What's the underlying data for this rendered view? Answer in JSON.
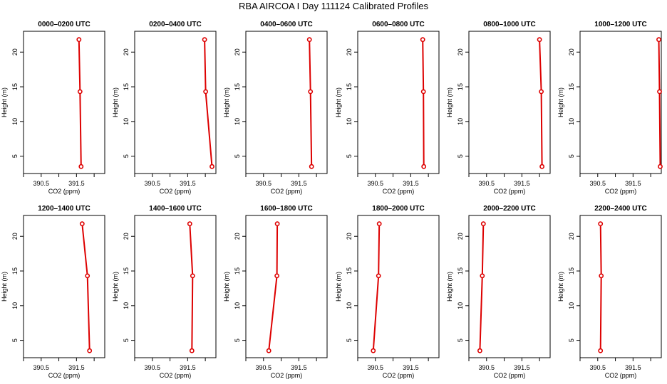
{
  "figure": {
    "title": "RBA AIRCOA I  Day 111124  Calibrated Profiles",
    "colors": {
      "series": "#dd0000",
      "axes": "#000000",
      "background": "#ffffff"
    }
  },
  "chart_data": [
    {
      "type": "line",
      "title": "0000–0200 UTC",
      "xlabel": "CO2 (ppm)",
      "ylabel": "Height (m)",
      "x_ticks": [
        "390.5",
        "391.5"
      ],
      "y_ticks": [
        "5",
        "10",
        "15",
        "20"
      ],
      "xlim": [
        390.0,
        392.3
      ],
      "ylim": [
        2.5,
        23.0
      ],
      "x": [
        391.63,
        391.6,
        391.57
      ],
      "y": [
        3.5,
        14.3,
        21.8
      ]
    },
    {
      "type": "line",
      "title": "0200–0400 UTC",
      "xlabel": "CO2 (ppm)",
      "ylabel": "Height (m)",
      "x_ticks": [
        "390.5",
        "391.5"
      ],
      "y_ticks": [
        "5",
        "10",
        "15",
        "20"
      ],
      "xlim": [
        390.0,
        392.3
      ],
      "ylim": [
        2.5,
        23.0
      ],
      "x": [
        392.19,
        392.01,
        391.98
      ],
      "y": [
        3.5,
        14.3,
        21.8
      ]
    },
    {
      "type": "line",
      "title": "0400–0600 UTC",
      "xlabel": "CO2 (ppm)",
      "ylabel": "Height (m)",
      "x_ticks": [
        "390.5",
        "391.5"
      ],
      "y_ticks": [
        "5",
        "10",
        "15",
        "20"
      ],
      "xlim": [
        390.0,
        392.3
      ],
      "ylim": [
        2.5,
        23.0
      ],
      "x": [
        391.86,
        391.83,
        391.8
      ],
      "y": [
        3.5,
        14.3,
        21.8
      ]
    },
    {
      "type": "line",
      "title": "0600–0800 UTC",
      "xlabel": "CO2 (ppm)",
      "ylabel": "Height (m)",
      "x_ticks": [
        "390.5",
        "391.5"
      ],
      "y_ticks": [
        "5",
        "10",
        "15",
        "20"
      ],
      "xlim": [
        390.0,
        392.3
      ],
      "ylim": [
        2.5,
        23.0
      ],
      "x": [
        391.87,
        391.86,
        391.84
      ],
      "y": [
        3.5,
        14.3,
        21.8
      ]
    },
    {
      "type": "line",
      "title": "0800–1000 UTC",
      "xlabel": "CO2 (ppm)",
      "ylabel": "Height (m)",
      "x_ticks": [
        "390.5",
        "391.5"
      ],
      "y_ticks": [
        "5",
        "10",
        "15",
        "20"
      ],
      "xlim": [
        390.0,
        392.3
      ],
      "ylim": [
        2.5,
        23.0
      ],
      "x": [
        392.07,
        392.05,
        392.0
      ],
      "y": [
        3.5,
        14.3,
        21.8
      ]
    },
    {
      "type": "line",
      "title": "1000–1200 UTC",
      "xlabel": "CO2 (ppm)",
      "ylabel": "Height (m)",
      "x_ticks": [
        "390.5",
        "391.5"
      ],
      "y_ticks": [
        "5",
        "10",
        "15",
        "20"
      ],
      "xlim": [
        390.0,
        392.3
      ],
      "ylim": [
        2.5,
        23.0
      ],
      "x": [
        392.27,
        392.25,
        392.23
      ],
      "y": [
        3.5,
        14.3,
        21.8
      ]
    },
    {
      "type": "line",
      "title": "1200–1400 UTC",
      "xlabel": "CO2 (ppm)",
      "ylabel": "Height (m)",
      "x_ticks": [
        "390.5",
        "391.5"
      ],
      "y_ticks": [
        "5",
        "10",
        "15",
        "20"
      ],
      "xlim": [
        390.0,
        392.3
      ],
      "ylim": [
        2.5,
        23.0
      ],
      "x": [
        391.87,
        391.81,
        391.66
      ],
      "y": [
        3.5,
        14.3,
        21.8
      ]
    },
    {
      "type": "line",
      "title": "1400–1600 UTC",
      "xlabel": "CO2 (ppm)",
      "ylabel": "Height (m)",
      "x_ticks": [
        "390.5",
        "391.5"
      ],
      "y_ticks": [
        "5",
        "10",
        "15",
        "20"
      ],
      "xlim": [
        390.0,
        392.3
      ],
      "ylim": [
        2.5,
        23.0
      ],
      "x": [
        391.62,
        391.64,
        391.56
      ],
      "y": [
        3.5,
        14.3,
        21.8
      ]
    },
    {
      "type": "line",
      "title": "1600–1800 UTC",
      "xlabel": "CO2 (ppm)",
      "ylabel": "Height (m)",
      "x_ticks": [
        "390.5",
        "391.5"
      ],
      "y_ticks": [
        "5",
        "10",
        "15",
        "20"
      ],
      "xlim": [
        390.0,
        392.3
      ],
      "ylim": [
        2.5,
        23.0
      ],
      "x": [
        390.65,
        390.88,
        390.89
      ],
      "y": [
        3.5,
        14.3,
        21.8
      ]
    },
    {
      "type": "line",
      "title": "1800–2000 UTC",
      "xlabel": "CO2 (ppm)",
      "ylabel": "Height (m)",
      "x_ticks": [
        "390.5",
        "391.5"
      ],
      "y_ticks": [
        "5",
        "10",
        "15",
        "20"
      ],
      "xlim": [
        390.0,
        392.3
      ],
      "ylim": [
        2.5,
        23.0
      ],
      "x": [
        390.44,
        390.59,
        390.61
      ],
      "y": [
        3.5,
        14.3,
        21.8
      ]
    },
    {
      "type": "line",
      "title": "2000–2200 UTC",
      "xlabel": "CO2 (ppm)",
      "ylabel": "Height (m)",
      "x_ticks": [
        "390.5",
        "391.5"
      ],
      "y_ticks": [
        "5",
        "10",
        "15",
        "20"
      ],
      "xlim": [
        390.0,
        392.3
      ],
      "ylim": [
        2.5,
        23.0
      ],
      "x": [
        390.31,
        390.38,
        390.41
      ],
      "y": [
        3.5,
        14.3,
        21.8
      ]
    },
    {
      "type": "line",
      "title": "2200–2400 UTC",
      "xlabel": "CO2 (ppm)",
      "ylabel": "Height (m)",
      "x_ticks": [
        "390.5",
        "391.5"
      ],
      "y_ticks": [
        "5",
        "10",
        "15",
        "20"
      ],
      "xlim": [
        390.0,
        392.3
      ],
      "ylim": [
        2.5,
        23.0
      ],
      "x": [
        390.58,
        390.6,
        390.58
      ],
      "y": [
        3.5,
        14.3,
        21.8
      ]
    }
  ]
}
